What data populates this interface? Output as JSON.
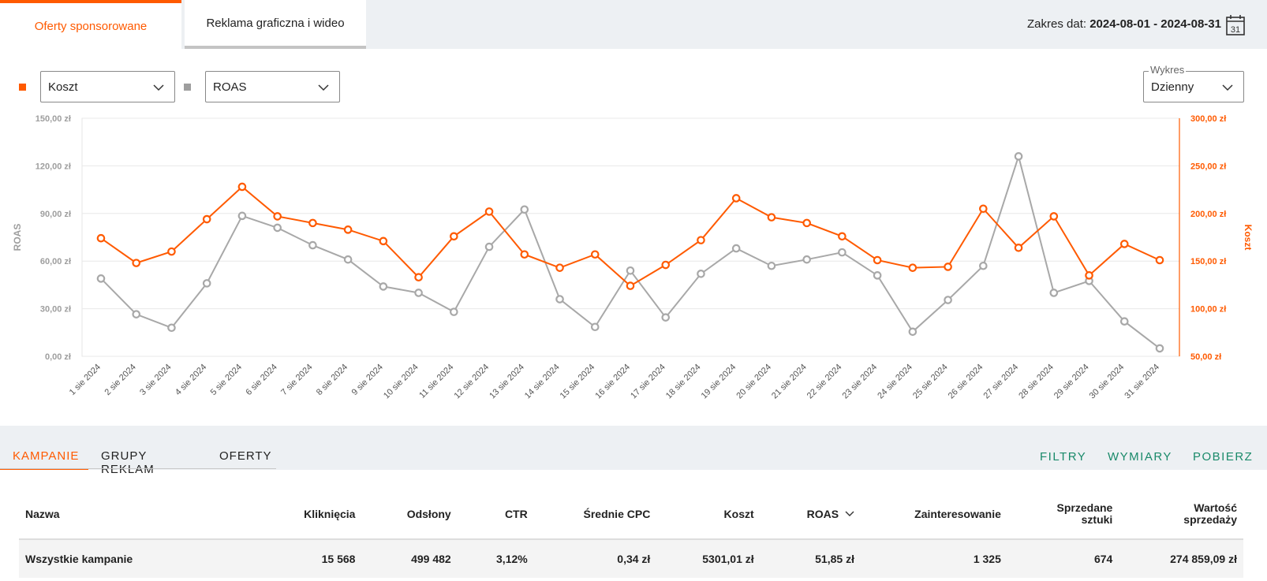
{
  "tabs": [
    {
      "label": "Oferty sponsorowane",
      "active": true
    },
    {
      "label": "Reklama graficzna i wideo",
      "active": false
    }
  ],
  "date_range": {
    "label": "Zakres dat:",
    "value": "2024-08-01 - 2024-08-31",
    "calendar_day": "31"
  },
  "controls": {
    "metric1": {
      "value": "Koszt",
      "color": "#ff5a00"
    },
    "metric2": {
      "value": "ROAS",
      "color": "#9e9e9e"
    },
    "chart_mode": {
      "legend": "Wykres",
      "value": "Dzienny"
    }
  },
  "chart_data": {
    "type": "line",
    "x": [
      "1 sie 2024",
      "2 sie 2024",
      "3 sie 2024",
      "4 sie 2024",
      "5 sie 2024",
      "6 sie 2024",
      "7 sie 2024",
      "8 sie 2024",
      "9 sie 2024",
      "10 sie 2024",
      "11 sie 2024",
      "12 sie 2024",
      "13 sie 2024",
      "14 sie 2024",
      "15 sie 2024",
      "16 sie 2024",
      "17 sie 2024",
      "18 sie 2024",
      "19 sie 2024",
      "20 sie 2024",
      "21 sie 2024",
      "22 sie 2024",
      "23 sie 2024",
      "24 sie 2024",
      "25 sie 2024",
      "26 sie 2024",
      "27 sie 2024",
      "28 sie 2024",
      "29 sie 2024",
      "30 sie 2024",
      "31 sie 2024"
    ],
    "left_axis": {
      "label": "ROAS",
      "ticks": [
        "0,00 zł",
        "30,00 zł",
        "60,00 zł",
        "90,00 zł",
        "120,00 zł",
        "150,00 zł"
      ],
      "min": 0,
      "max": 150
    },
    "right_axis": {
      "label": "Koszt",
      "ticks": [
        "50,00 zł",
        "100,00 zł",
        "150,00 zł",
        "200,00 zł",
        "250,00 zł",
        "300,00 zł"
      ],
      "min": 50,
      "max": 300
    },
    "series": [
      {
        "name": "ROAS",
        "axis": "left",
        "color": "#a8a8a8",
        "values": [
          49,
          26.5,
          18,
          46,
          88.5,
          81,
          70,
          61,
          44,
          40,
          28,
          69,
          92.5,
          36,
          18.5,
          54,
          24.5,
          52,
          68,
          57,
          61,
          65.5,
          51,
          15.5,
          35.5,
          57,
          126,
          40,
          47.5,
          22,
          5
        ]
      },
      {
        "name": "Koszt",
        "axis": "right",
        "color": "#ff5a00",
        "values": [
          174,
          148,
          160,
          194,
          228,
          197,
          190,
          183,
          171,
          133,
          176,
          202,
          157,
          143,
          157,
          124,
          146,
          172,
          216,
          196,
          190,
          176,
          151,
          143,
          144,
          205,
          164,
          197,
          135,
          168,
          151
        ]
      }
    ],
    "grid": true
  },
  "bottom_tabs": [
    {
      "label": "KAMPANIE",
      "active": true
    },
    {
      "label": "GRUPY REKLAM",
      "active": false
    },
    {
      "label": "OFERTY",
      "active": false
    }
  ],
  "actions": [
    "FILTRY",
    "WYMIARY",
    "POBIERZ"
  ],
  "table": {
    "columns": [
      "Nazwa",
      "Kliknięcia",
      "Odsłony",
      "CTR",
      "Średnie CPC",
      "Koszt",
      "ROAS",
      "Zainteresowanie",
      "Sprzedane sztuki",
      "Wartość sprzedaży"
    ],
    "rows": [
      [
        "Wszystkie kampanie",
        "15 568",
        "499 482",
        "3,12%",
        "0,34 zł",
        "5301,01 zł",
        "51,85 zł",
        "1 325",
        "674",
        "274 859,09 zł"
      ]
    ]
  }
}
